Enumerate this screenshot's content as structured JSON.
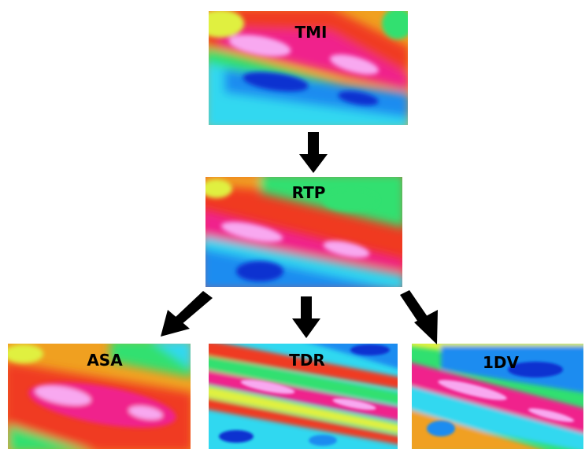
{
  "panels": {
    "tmi": {
      "label": "TMI"
    },
    "rtp": {
      "label": "RTP"
    },
    "asa": {
      "label": "ASA"
    },
    "tdr": {
      "label": "TDR"
    },
    "dv1": {
      "label": "1DV"
    }
  },
  "colors": {
    "background": "#ffffff",
    "arrow": "#000000",
    "colormap": [
      "#1030d0",
      "#1c8cf0",
      "#30d8f0",
      "#30e070",
      "#e0f040",
      "#f0a020",
      "#f03a20",
      "#f0208c",
      "#f8a8f0"
    ]
  }
}
